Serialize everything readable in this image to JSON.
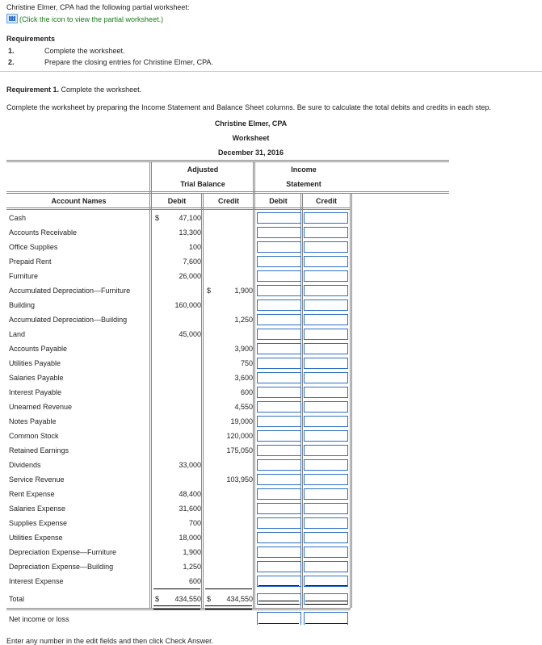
{
  "intro": "Christine Elmer, CPA had the following partial worksheet:",
  "icon_hint": "(Click the icon to view the partial worksheet.)",
  "requirements_title": "Requirements",
  "requirements": [
    {
      "num": "1.",
      "text": "Complete the worksheet."
    },
    {
      "num": "2.",
      "text": "Prepare the closing entries for Christine Elmer, CPA."
    }
  ],
  "req1_label": "Requirement 1.",
  "req1_text": "Complete the worksheet.",
  "instruction": "Complete the worksheet by preparing the Income Statement and Balance Sheet columns. Be sure to calculate the total debits and credits in each step.",
  "ws_company": "Christine Elmer, CPA",
  "ws_title": "Worksheet",
  "ws_date": "December 31, 2016",
  "headers": {
    "atb1": "Adjusted",
    "atb2": "Trial Balance",
    "is1": "Income",
    "is2": "Statement",
    "names": "Account Names",
    "debit": "Debit",
    "credit": "Credit",
    "is_debit": "Debit",
    "is_credit": "Credit"
  },
  "accounts": [
    {
      "name": "Cash",
      "debit": "47,100",
      "credit": "",
      "debit_dollar": "$"
    },
    {
      "name": "Accounts Receivable",
      "debit": "13,300",
      "credit": ""
    },
    {
      "name": "Office Supplies",
      "debit": "100",
      "credit": ""
    },
    {
      "name": "Prepaid Rent",
      "debit": "7,600",
      "credit": ""
    },
    {
      "name": "Furniture",
      "debit": "26,000",
      "credit": ""
    },
    {
      "name": "Accumulated Depreciation—Furniture",
      "debit": "",
      "credit": "1,900",
      "credit_dollar": "$"
    },
    {
      "name": "Building",
      "debit": "160,000",
      "credit": ""
    },
    {
      "name": "Accumulated Depreciation—Building",
      "debit": "",
      "credit": "1,250"
    },
    {
      "name": "Land",
      "debit": "45,000",
      "credit": ""
    },
    {
      "name": "Accounts Payable",
      "debit": "",
      "credit": "3,900"
    },
    {
      "name": "Utilities Payable",
      "debit": "",
      "credit": "750"
    },
    {
      "name": "Salaries Payable",
      "debit": "",
      "credit": "3,600"
    },
    {
      "name": "Interest Payable",
      "debit": "",
      "credit": "600"
    },
    {
      "name": "Unearned Revenue",
      "debit": "",
      "credit": "4,550"
    },
    {
      "name": "Notes Payable",
      "debit": "",
      "credit": "19,000"
    },
    {
      "name": "Common Stock",
      "debit": "",
      "credit": "120,000"
    },
    {
      "name": "Retained Earnings",
      "debit": "",
      "credit": "175,050"
    },
    {
      "name": "Dividends",
      "debit": "33,000",
      "credit": ""
    },
    {
      "name": "Service Revenue",
      "debit": "",
      "credit": "103,950"
    },
    {
      "name": "Rent Expense",
      "debit": "48,400",
      "credit": ""
    },
    {
      "name": "Salaries Expense",
      "debit": "31,600",
      "credit": ""
    },
    {
      "name": "Supplies Expense",
      "debit": "700",
      "credit": ""
    },
    {
      "name": "Utilities Expense",
      "debit": "18,000",
      "credit": ""
    },
    {
      "name": "Depreciation Expense—Furniture",
      "debit": "1,900",
      "credit": ""
    },
    {
      "name": "Depreciation Expense—Building",
      "debit": "1,250",
      "credit": ""
    },
    {
      "name": "Interest Expense",
      "debit": "600",
      "credit": ""
    }
  ],
  "total": {
    "name": "Total",
    "debit_dollar": "$",
    "debit": "434,550",
    "credit_dollar": "$",
    "credit": "434,550"
  },
  "net_income_label": "Net income or loss",
  "footer": "Enter any number in the edit fields and then click Check Answer."
}
